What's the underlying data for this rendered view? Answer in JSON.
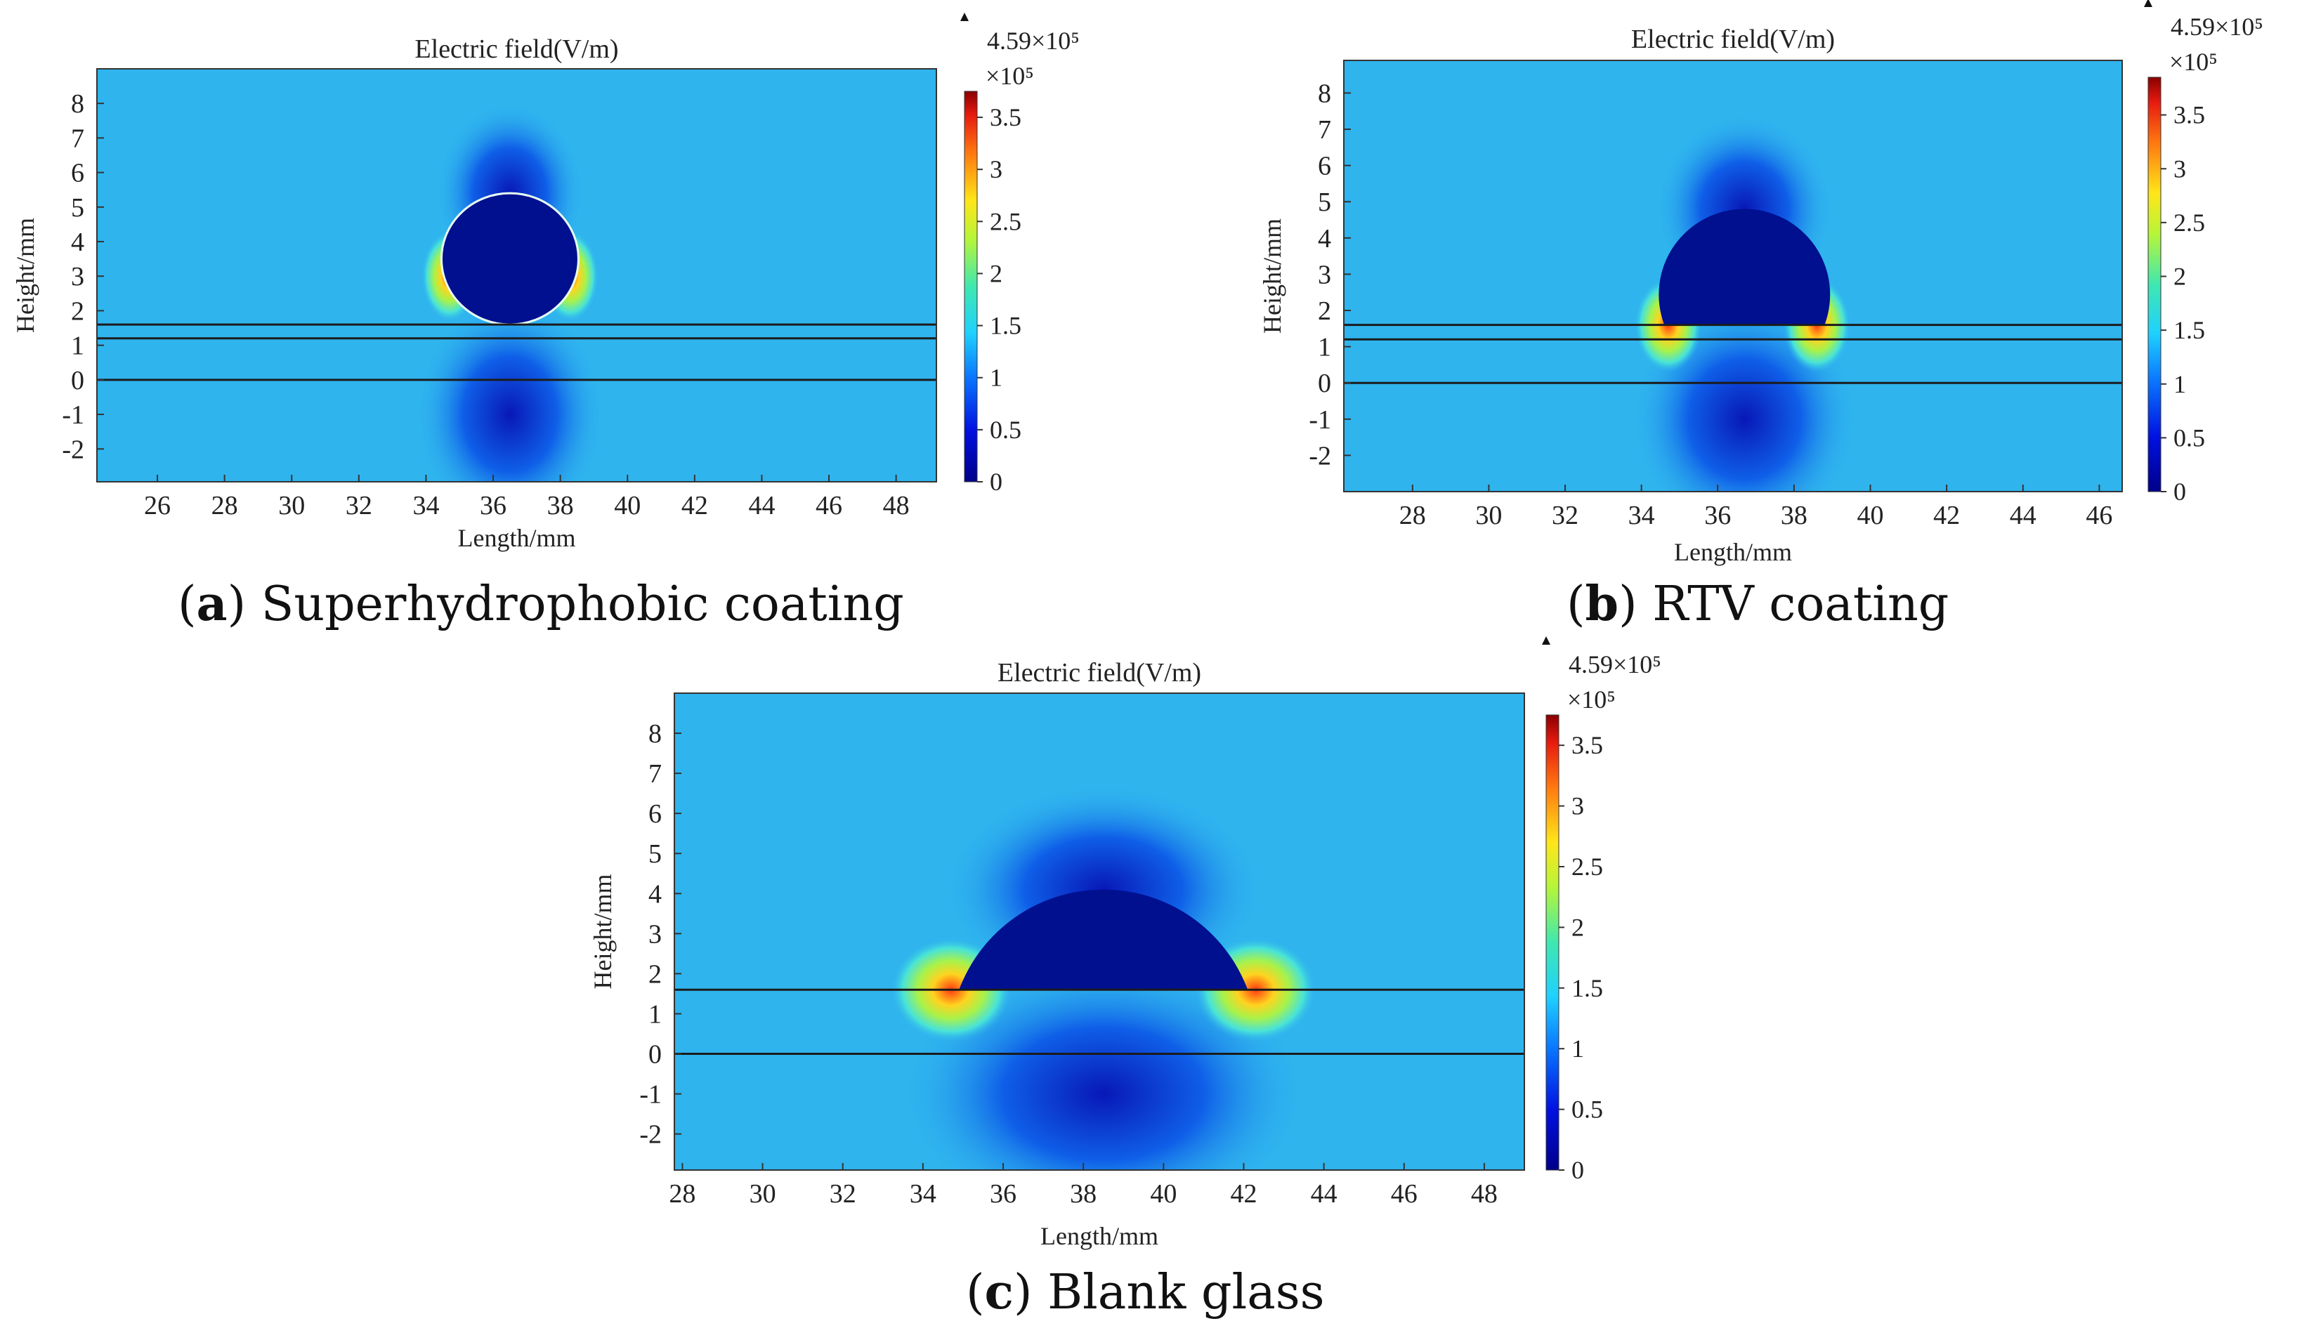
{
  "colors": {
    "background": "#2fb4ee",
    "drop": "#00108f",
    "line": "#1b1b1b"
  },
  "chart_data": [
    {
      "type": "heatmap",
      "title": "Electric field(V/m)",
      "xlabel": "Length/mm",
      "ylabel": "Height/mm",
      "xlim": [
        24.2,
        49.2
      ],
      "ylim": [
        -2.95,
        9.0
      ],
      "xticks": [
        26,
        28,
        30,
        32,
        34,
        36,
        38,
        40,
        42,
        44,
        46,
        48
      ],
      "yticks": [
        -2,
        -1,
        0,
        1,
        2,
        3,
        4,
        5,
        6,
        7,
        8
      ],
      "interface_lines_mm": [
        1.6,
        1.2,
        0
      ],
      "droplet": {
        "shape": "near-spherical",
        "center_x_mm": 36.5,
        "contact_y_mm": 1.6,
        "width_mm": 4.0,
        "top_y_mm": 5.4
      },
      "peak_regions": [
        {
          "x_mm": 34.7,
          "y_mm": 3.0,
          "level": "high"
        },
        {
          "x_mm": 38.3,
          "y_mm": 3.0,
          "level": "high"
        }
      ],
      "colorbar": {
        "max_label": "4.59×10⁵",
        "unit_label": "×10⁵",
        "ticks": [
          "0",
          "0.5",
          "1",
          "1.5",
          "2",
          "2.5",
          "3",
          "3.5"
        ],
        "range": [
          0,
          3.75
        ]
      },
      "caption": {
        "letter": "a",
        "text": " Superhydrophobic coating"
      }
    },
    {
      "type": "heatmap",
      "title": "Electric field(V/m)",
      "xlabel": "Length/mm",
      "ylabel": "Height/mm",
      "xlim": [
        26.2,
        46.6
      ],
      "ylim": [
        -3.0,
        8.9
      ],
      "xticks": [
        28,
        30,
        32,
        34,
        36,
        38,
        40,
        42,
        44,
        46
      ],
      "yticks": [
        -2,
        -1,
        0,
        1,
        2,
        3,
        4,
        5,
        6,
        7,
        8
      ],
      "interface_lines_mm": [
        1.6,
        1.2,
        0
      ],
      "droplet": {
        "shape": "hemispherical",
        "center_x_mm": 36.7,
        "contact_y_mm": 1.6,
        "width_mm": 4.2,
        "top_y_mm": 4.8
      },
      "peak_regions": [
        {
          "x_mm": 34.7,
          "y_mm": 1.6,
          "level": "high"
        },
        {
          "x_mm": 38.6,
          "y_mm": 1.6,
          "level": "high"
        }
      ],
      "colorbar": {
        "max_label": "4.59×10⁵",
        "unit_label": "×10⁵",
        "ticks": [
          "0",
          "0.5",
          "1",
          "1.5",
          "2",
          "2.5",
          "3",
          "3.5"
        ],
        "range": [
          0,
          3.85
        ]
      },
      "caption": {
        "letter": "b",
        "text": " RTV coating"
      }
    },
    {
      "type": "heatmap",
      "title": "Electric field(V/m)",
      "xlabel": "Length/mm",
      "ylabel": "Height/mm",
      "xlim": [
        27.8,
        49.0
      ],
      "ylim": [
        -2.9,
        9.0
      ],
      "xticks": [
        28,
        30,
        32,
        34,
        36,
        38,
        40,
        42,
        44,
        46,
        48
      ],
      "yticks": [
        -2,
        -1,
        0,
        1,
        2,
        3,
        4,
        5,
        6,
        7,
        8
      ],
      "interface_lines_mm": [
        1.6,
        0
      ],
      "droplet": {
        "shape": "spherical-cap",
        "center_x_mm": 38.5,
        "contact_y_mm": 1.6,
        "width_mm": 7.2,
        "top_y_mm": 4.1
      },
      "peak_regions": [
        {
          "x_mm": 34.7,
          "y_mm": 1.6,
          "level": "high"
        },
        {
          "x_mm": 42.3,
          "y_mm": 1.6,
          "level": "high"
        }
      ],
      "colorbar": {
        "max_label": "4.59×10⁵",
        "unit_label": "×10⁵",
        "ticks": [
          "0",
          "0.5",
          "1",
          "1.5",
          "2",
          "2.5",
          "3",
          "3.5"
        ],
        "range": [
          0,
          3.75
        ]
      },
      "caption": {
        "letter": "c",
        "text": " Blank glass"
      }
    }
  ]
}
